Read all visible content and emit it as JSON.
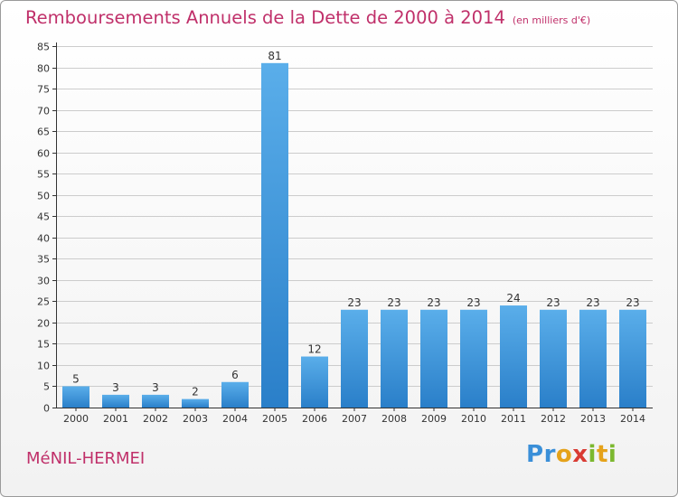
{
  "header": {
    "title": "Remboursements Annuels de la Dette de 2000 à 2014",
    "unit": "(en milliers d'€)"
  },
  "footer": {
    "commune": "MéNIL-HERMEI",
    "brand": "Proxiti"
  },
  "colors": {
    "title": "#c0306a",
    "bar_light": "#5aaeea",
    "bar_dark": "#2a7fc9",
    "grid": "#cccccc",
    "axis": "#333333"
  },
  "chart_data": {
    "type": "bar",
    "title": "Remboursements Annuels de la Dette de 2000 à 2014",
    "subtitle": "(en milliers d'€)",
    "xlabel": "",
    "ylabel": "",
    "categories": [
      "2000",
      "2001",
      "2002",
      "2003",
      "2004",
      "2005",
      "2006",
      "2007",
      "2008",
      "2009",
      "2010",
      "2011",
      "2012",
      "2013",
      "2014"
    ],
    "values": [
      5,
      3,
      3,
      2,
      6,
      81,
      12,
      23,
      23,
      23,
      23,
      24,
      23,
      23,
      23
    ],
    "ylim": [
      0,
      85
    ],
    "yticks": [
      0,
      5,
      10,
      15,
      20,
      25,
      30,
      35,
      40,
      45,
      50,
      55,
      60,
      65,
      70,
      75,
      80,
      85
    ],
    "grid": true,
    "data_labels": true,
    "legend": "none"
  }
}
